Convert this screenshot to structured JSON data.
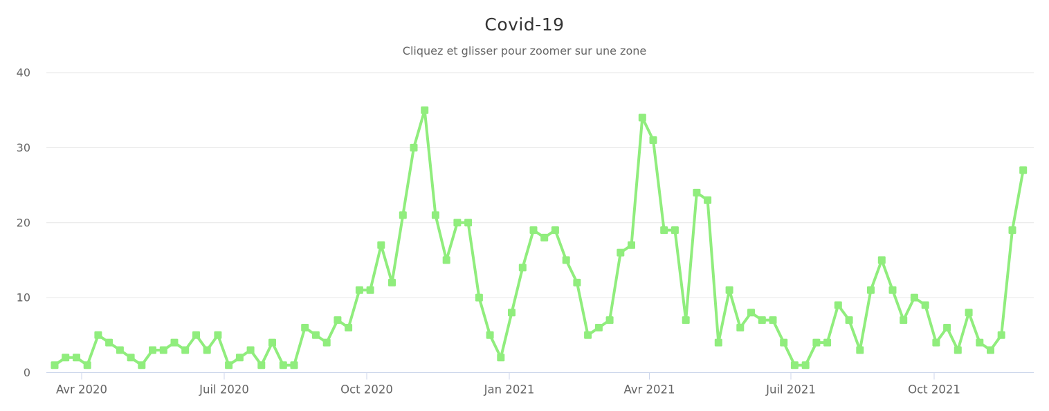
{
  "chart": {
    "colors": {
      "series": "#90ed7d",
      "grid": "#e6e6e6",
      "axis_line": "#ccd6eb",
      "axis_label": "#666666",
      "title": "#333333",
      "subtitle": "#666666",
      "background": "#ffffff"
    }
  },
  "chart_data": {
    "type": "line",
    "title": "Covid-19",
    "subtitle": "Cliquez et glisser pour zoomer sur une zone",
    "legend": "none",
    "grid": "horizontal",
    "marker": "square",
    "x_unit": "week",
    "x_tick_labels": [
      "Avr 2020",
      "Juil 2020",
      "Oct 2020",
      "Jan 2021",
      "Avr 2021",
      "Juil 2021",
      "Oct 2021"
    ],
    "y_ticks": [
      0,
      10,
      20,
      30,
      40
    ],
    "ylim": [
      0,
      40
    ],
    "values": [
      1,
      2,
      2,
      1,
      5,
      4,
      3,
      2,
      1,
      3,
      3,
      4,
      3,
      5,
      3,
      5,
      1,
      2,
      3,
      1,
      4,
      1,
      1,
      6,
      5,
      4,
      7,
      6,
      11,
      11,
      17,
      12,
      21,
      30,
      35,
      21,
      15,
      20,
      20,
      10,
      5,
      2,
      8,
      14,
      19,
      18,
      19,
      15,
      12,
      5,
      6,
      7,
      16,
      17,
      34,
      31,
      19,
      19,
      7,
      24,
      23,
      4,
      11,
      6,
      8,
      7,
      7,
      4,
      1,
      1,
      4,
      4,
      9,
      7,
      3,
      11,
      15,
      11,
      7,
      10,
      9,
      4,
      6,
      3,
      8,
      4,
      3,
      5,
      19,
      27
    ]
  }
}
